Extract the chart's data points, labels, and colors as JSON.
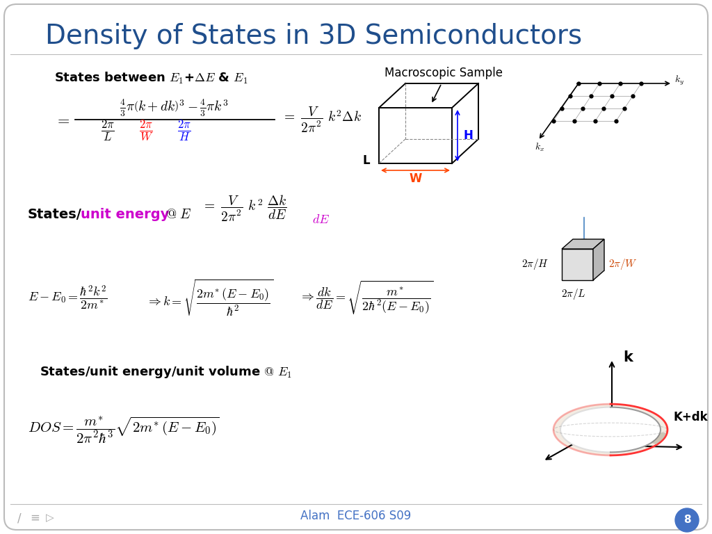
{
  "title": "Density of States in 3D Semiconductors",
  "title_color": "#1F4E8C",
  "title_fontsize": 28,
  "bg_color": "#FFFFFF",
  "footer_text": "Alam  ECE-606 S09",
  "footer_color": "#4472C4",
  "slide_number": "8",
  "slide_num_bg": "#4472C4",
  "slide_num_color": "#FFFFFF"
}
